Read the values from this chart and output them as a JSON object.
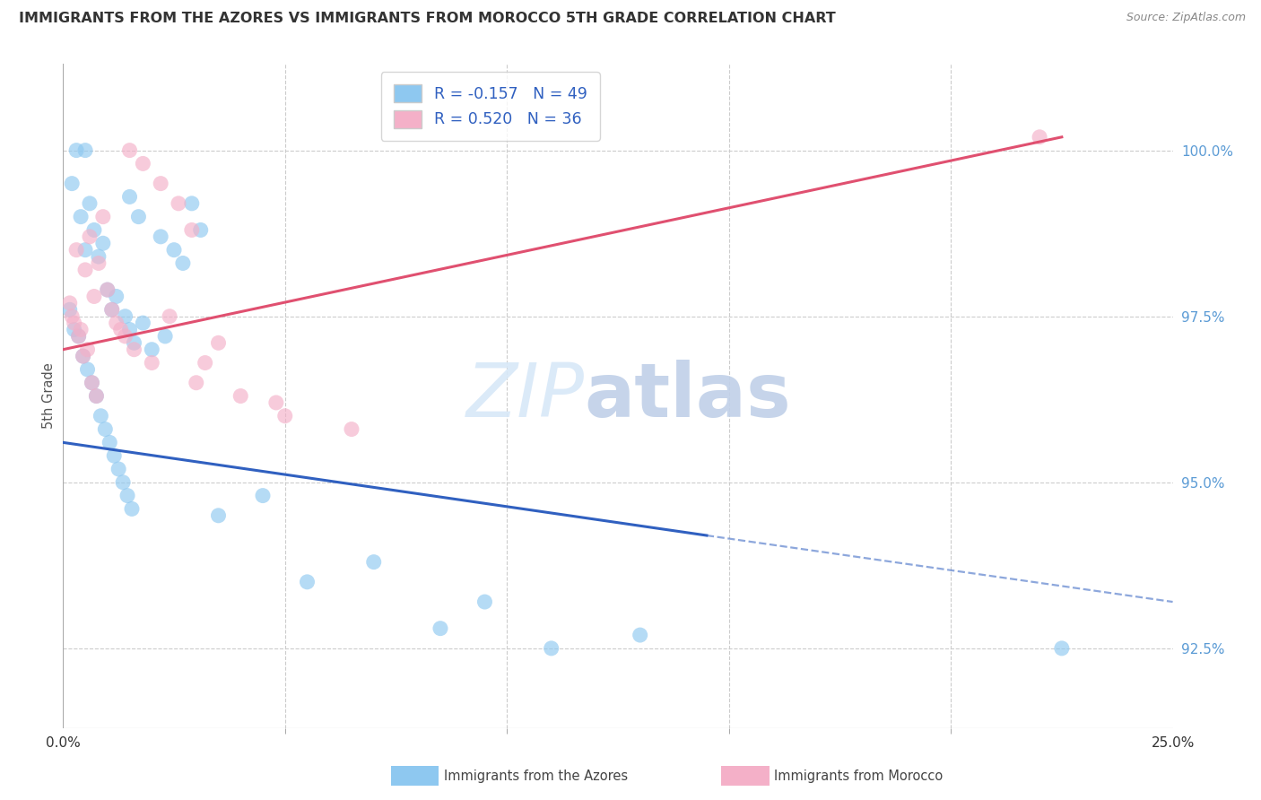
{
  "title": "IMMIGRANTS FROM THE AZORES VS IMMIGRANTS FROM MOROCCO 5TH GRADE CORRELATION CHART",
  "source": "Source: ZipAtlas.com",
  "ylabel": "5th Grade",
  "y_ticks_labels": [
    "92.5%",
    "95.0%",
    "97.5%",
    "100.0%"
  ],
  "y_ticks_vals": [
    92.5,
    95.0,
    97.5,
    100.0
  ],
  "x_range": [
    0.0,
    25.0
  ],
  "y_range": [
    91.3,
    101.3
  ],
  "R_azores": -0.157,
  "N_azores": 49,
  "R_morocco": 0.52,
  "N_morocco": 36,
  "color_azores": "#8EC8F0",
  "color_morocco": "#F4B0C8",
  "color_azores_line": "#3060C0",
  "color_morocco_line": "#E05070",
  "az_line_x0": 0.0,
  "az_line_y0": 95.6,
  "az_line_x1": 14.5,
  "az_line_y1": 94.2,
  "az_dash_x0": 14.5,
  "az_dash_y0": 94.2,
  "az_dash_x1": 25.0,
  "az_dash_y1": 93.2,
  "mo_line_x0": 0.0,
  "mo_line_y0": 97.0,
  "mo_line_x1": 22.5,
  "mo_line_y1": 100.2,
  "azores_x": [
    0.3,
    0.5,
    1.5,
    1.7,
    2.2,
    2.5,
    2.7,
    2.9,
    3.1,
    0.2,
    0.4,
    0.5,
    0.6,
    0.7,
    0.8,
    0.9,
    1.0,
    1.1,
    1.2,
    1.4,
    1.5,
    1.6,
    1.8,
    2.0,
    2.3,
    0.15,
    0.25,
    0.35,
    0.45,
    0.55,
    0.65,
    0.75,
    0.85,
    0.95,
    1.05,
    1.15,
    1.25,
    1.35,
    1.45,
    1.55,
    3.5,
    4.5,
    5.5,
    7.0,
    8.5,
    9.5,
    11.0,
    13.0,
    22.5
  ],
  "azores_y": [
    100.0,
    100.0,
    99.3,
    99.0,
    98.7,
    98.5,
    98.3,
    99.2,
    98.8,
    99.5,
    99.0,
    98.5,
    99.2,
    98.8,
    98.4,
    98.6,
    97.9,
    97.6,
    97.8,
    97.5,
    97.3,
    97.1,
    97.4,
    97.0,
    97.2,
    97.6,
    97.3,
    97.2,
    96.9,
    96.7,
    96.5,
    96.3,
    96.0,
    95.8,
    95.6,
    95.4,
    95.2,
    95.0,
    94.8,
    94.6,
    94.5,
    94.8,
    93.5,
    93.8,
    92.8,
    93.2,
    92.5,
    92.7,
    92.5
  ],
  "morocco_x": [
    0.2,
    0.4,
    1.5,
    1.8,
    2.2,
    2.6,
    2.9,
    0.3,
    0.5,
    0.6,
    0.7,
    0.8,
    0.9,
    1.0,
    1.1,
    1.2,
    1.4,
    1.6,
    2.0,
    2.4,
    0.15,
    0.25,
    0.35,
    0.45,
    0.55,
    3.0,
    3.5,
    4.0,
    5.0,
    6.5,
    1.3,
    3.2,
    4.8,
    22.0,
    0.65,
    0.75
  ],
  "morocco_y": [
    97.5,
    97.3,
    100.0,
    99.8,
    99.5,
    99.2,
    98.8,
    98.5,
    98.2,
    98.7,
    97.8,
    98.3,
    99.0,
    97.9,
    97.6,
    97.4,
    97.2,
    97.0,
    96.8,
    97.5,
    97.7,
    97.4,
    97.2,
    96.9,
    97.0,
    96.5,
    97.1,
    96.3,
    96.0,
    95.8,
    97.3,
    96.8,
    96.2,
    100.2,
    96.5,
    96.3
  ]
}
